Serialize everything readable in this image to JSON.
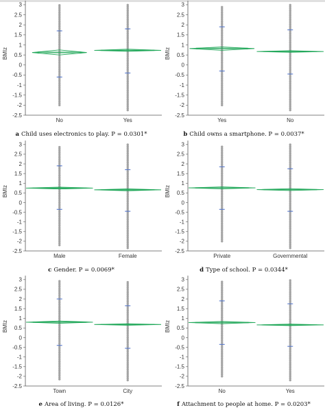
{
  "chart_data": [
    {
      "type": "scatter",
      "panel": "a",
      "caption": "Child uses electronics to play. P = 0.0301*",
      "ylabel": "BMIz",
      "yticks": [
        3,
        2.5,
        2,
        1.5,
        1,
        0.5,
        0,
        -0.5,
        -1,
        -1.5,
        -2,
        -2.5
      ],
      "ylim": [
        -2.5,
        3.1
      ],
      "categories": [
        "No",
        "Yes"
      ],
      "groups": [
        {
          "name": "No",
          "min": -2.0,
          "max": 3.0,
          "mean": 0.62,
          "q_upper": 1.7,
          "q_lower": -0.6,
          "ci": [
            0.5,
            0.75
          ],
          "ann": "spread"
        },
        {
          "name": "Yes",
          "min": -2.25,
          "max": 3.05,
          "mean": 0.73,
          "q_upper": 1.8,
          "q_lower": -0.4,
          "ci": [
            0.68,
            0.79
          ],
          "ann": "flat"
        }
      ]
    },
    {
      "type": "scatter",
      "panel": "b",
      "caption": "Child owns a smartphone. P = 0.0037*",
      "ylabel": "BMIz",
      "yticks": [
        3,
        2.5,
        2,
        1.5,
        1,
        0.5,
        0,
        -0.5,
        -1,
        -1.5,
        -2,
        -2.5
      ],
      "ylim": [
        -2.5,
        3.1
      ],
      "categories": [
        "Yes",
        "No"
      ],
      "groups": [
        {
          "name": "Yes",
          "min": -2.0,
          "max": 2.95,
          "mean": 0.82,
          "q_upper": 1.9,
          "q_lower": -0.3,
          "ci": [
            0.73,
            0.9
          ],
          "ann": "narrow"
        },
        {
          "name": "No",
          "min": -2.25,
          "max": 3.05,
          "mean": 0.67,
          "q_upper": 1.75,
          "q_lower": -0.45,
          "ci": [
            0.63,
            0.71
          ],
          "ann": "flat"
        }
      ]
    },
    {
      "type": "scatter",
      "panel": "c",
      "caption": "Gender. P = 0.0069*",
      "ylabel": "BMIz",
      "yticks": [
        3,
        2.5,
        2,
        1.5,
        1,
        0.5,
        0,
        -0.5,
        -1,
        -1.5,
        -2,
        -2.5
      ],
      "ylim": [
        -2.5,
        3.1
      ],
      "categories": [
        "Male",
        "Female"
      ],
      "groups": [
        {
          "name": "Male",
          "min": -2.2,
          "max": 2.95,
          "mean": 0.75,
          "q_upper": 1.9,
          "q_lower": -0.35,
          "ci": [
            0.7,
            0.8
          ],
          "ann": "flat"
        },
        {
          "name": "Female",
          "min": -2.35,
          "max": 3.05,
          "mean": 0.66,
          "q_upper": 1.7,
          "q_lower": -0.45,
          "ci": [
            0.61,
            0.71
          ],
          "ann": "flat"
        }
      ]
    },
    {
      "type": "scatter",
      "panel": "d",
      "caption": "Type of school. P = 0.0344*",
      "ylabel": "BMIz",
      "yticks": [
        3,
        2.5,
        2,
        1.5,
        1,
        0.5,
        0,
        -0.5,
        -1,
        -1.5,
        -2,
        -2.5
      ],
      "ylim": [
        -2.5,
        3.1
      ],
      "categories": [
        "Private",
        "Governmental"
      ],
      "groups": [
        {
          "name": "Private",
          "min": -2.0,
          "max": 2.95,
          "mean": 0.76,
          "q_upper": 1.85,
          "q_lower": -0.35,
          "ci": [
            0.71,
            0.81
          ],
          "ann": "flat"
        },
        {
          "name": "Governmental",
          "min": -2.35,
          "max": 3.05,
          "mean": 0.67,
          "q_upper": 1.75,
          "q_lower": -0.45,
          "ci": [
            0.62,
            0.72
          ],
          "ann": "flat"
        }
      ]
    },
    {
      "type": "scatter",
      "panel": "e",
      "caption": "Area of living. P = 0.0126*",
      "ylabel": "BMIz",
      "yticks": [
        3,
        2.5,
        2,
        1.5,
        1,
        0.5,
        0,
        -0.5,
        -1,
        -1.5,
        -2,
        -2.5
      ],
      "ylim": [
        -2.5,
        3.1
      ],
      "categories": [
        "Town",
        "City"
      ],
      "groups": [
        {
          "name": "Town",
          "min": -2.15,
          "max": 3.0,
          "mean": 0.8,
          "q_upper": 2.0,
          "q_lower": -0.4,
          "ci": [
            0.74,
            0.86
          ],
          "ann": "flat"
        },
        {
          "name": "City",
          "min": -2.2,
          "max": 2.9,
          "mean": 0.68,
          "q_upper": 1.65,
          "q_lower": -0.55,
          "ci": [
            0.64,
            0.72
          ],
          "ann": "flat"
        }
      ]
    },
    {
      "type": "scatter",
      "panel": "f",
      "caption": "Attachment to people at home. P = 0.0203*",
      "ylabel": "BMIz",
      "yticks": [
        3,
        2.5,
        2,
        1.5,
        1,
        0.5,
        0,
        -0.5,
        -1,
        -1.5,
        -2,
        -2.5
      ],
      "ylim": [
        -2.5,
        3.1
      ],
      "categories": [
        "No",
        "Yes"
      ],
      "groups": [
        {
          "name": "No",
          "min": -2.0,
          "max": 2.95,
          "mean": 0.78,
          "q_upper": 1.9,
          "q_lower": -0.35,
          "ci": [
            0.72,
            0.84
          ],
          "ann": "flat"
        },
        {
          "name": "Yes",
          "min": -2.2,
          "max": 3.05,
          "mean": 0.66,
          "q_upper": 1.75,
          "q_lower": -0.45,
          "ci": [
            0.62,
            0.7
          ],
          "ann": "flat"
        }
      ]
    }
  ],
  "colors": {
    "points": "#a4a4a4",
    "diamond": "#22a85a",
    "quantile": "#5577cc",
    "axis": "#555555"
  }
}
